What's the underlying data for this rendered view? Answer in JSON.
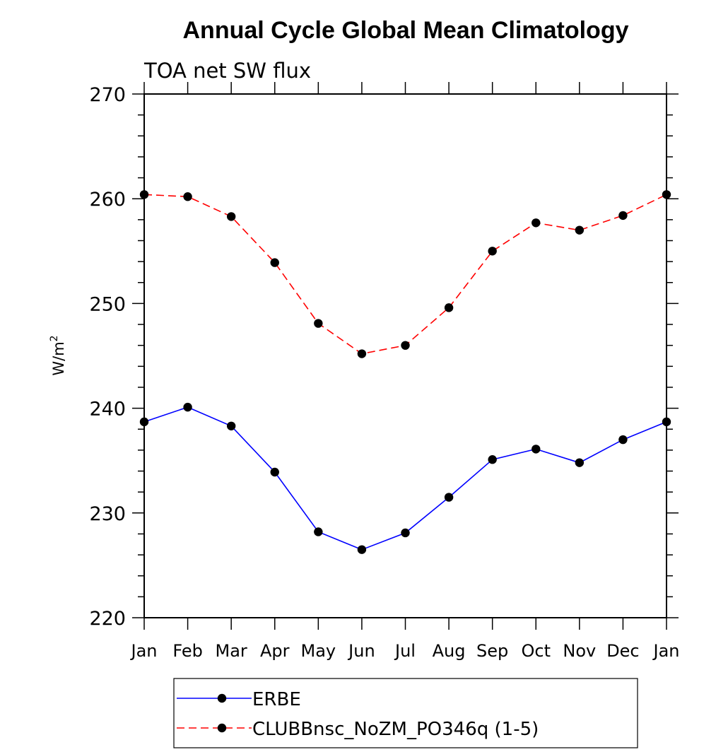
{
  "chart_data": {
    "type": "line",
    "title": "Annual Cycle Global Mean Climatology",
    "subtitle": "TOA net SW flux",
    "ylabel": "W/m",
    "ylabel_superscript": "2",
    "ylim": [
      220,
      270
    ],
    "yticks": [
      "220",
      "230",
      "240",
      "250",
      "260",
      "270"
    ],
    "categories": [
      "Jan",
      "Feb",
      "Mar",
      "Apr",
      "May",
      "Jun",
      "Jul",
      "Aug",
      "Sep",
      "Oct",
      "Nov",
      "Dec",
      "Jan"
    ],
    "grid": false,
    "legend_position": "bottom",
    "series": [
      {
        "name": "ERBE",
        "color": "#0000ff",
        "line_style": "solid",
        "marker": "filled-circle",
        "values": [
          238.7,
          240.1,
          238.3,
          233.9,
          228.2,
          226.5,
          228.1,
          231.5,
          235.1,
          236.1,
          234.8,
          237.0,
          238.7
        ]
      },
      {
        "name": "CLUBBnsc_NoZM_PO346q (1-5)",
        "color": "#ff0000",
        "line_style": "dashed",
        "marker": "filled-circle",
        "values": [
          260.4,
          260.2,
          258.3,
          253.9,
          248.1,
          245.2,
          246.0,
          249.6,
          255.0,
          257.7,
          257.0,
          258.4,
          260.4
        ]
      }
    ]
  }
}
